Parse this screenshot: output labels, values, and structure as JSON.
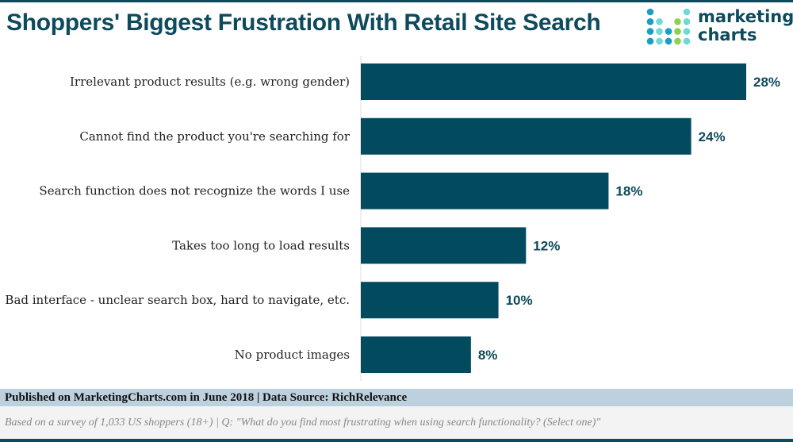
{
  "title": "Shoppers' Biggest Frustration With Retail Site Search",
  "logo": {
    "line1": "marketing",
    "line2": "charts"
  },
  "colors": {
    "bar": "#024b5f",
    "title": "#0d4a5c",
    "footer_band": "#bcd1dd"
  },
  "chart_data": {
    "type": "bar",
    "orientation": "horizontal",
    "categories": [
      "Irrelevant product results (e.g. wrong gender)",
      "Cannot find the product you're searching for",
      "Search function does not recognize the words I use",
      "Takes too long to load results",
      "Bad interface - unclear search box, hard to navigate, etc.",
      "No product images"
    ],
    "values": [
      28,
      24,
      18,
      12,
      10,
      8
    ],
    "labels": [
      "28%",
      "24%",
      "18%",
      "12%",
      "10%",
      "8%"
    ],
    "xlim": [
      0,
      28
    ],
    "grid": false
  },
  "footer": {
    "published": "Published on MarketingCharts.com in June 2018 | Data Source: RichRelevance",
    "note": "Based on a survey of 1,033 US shoppers (18+) | Q: \"What do you find most frustrating when using search functionality? (Select one)\""
  }
}
